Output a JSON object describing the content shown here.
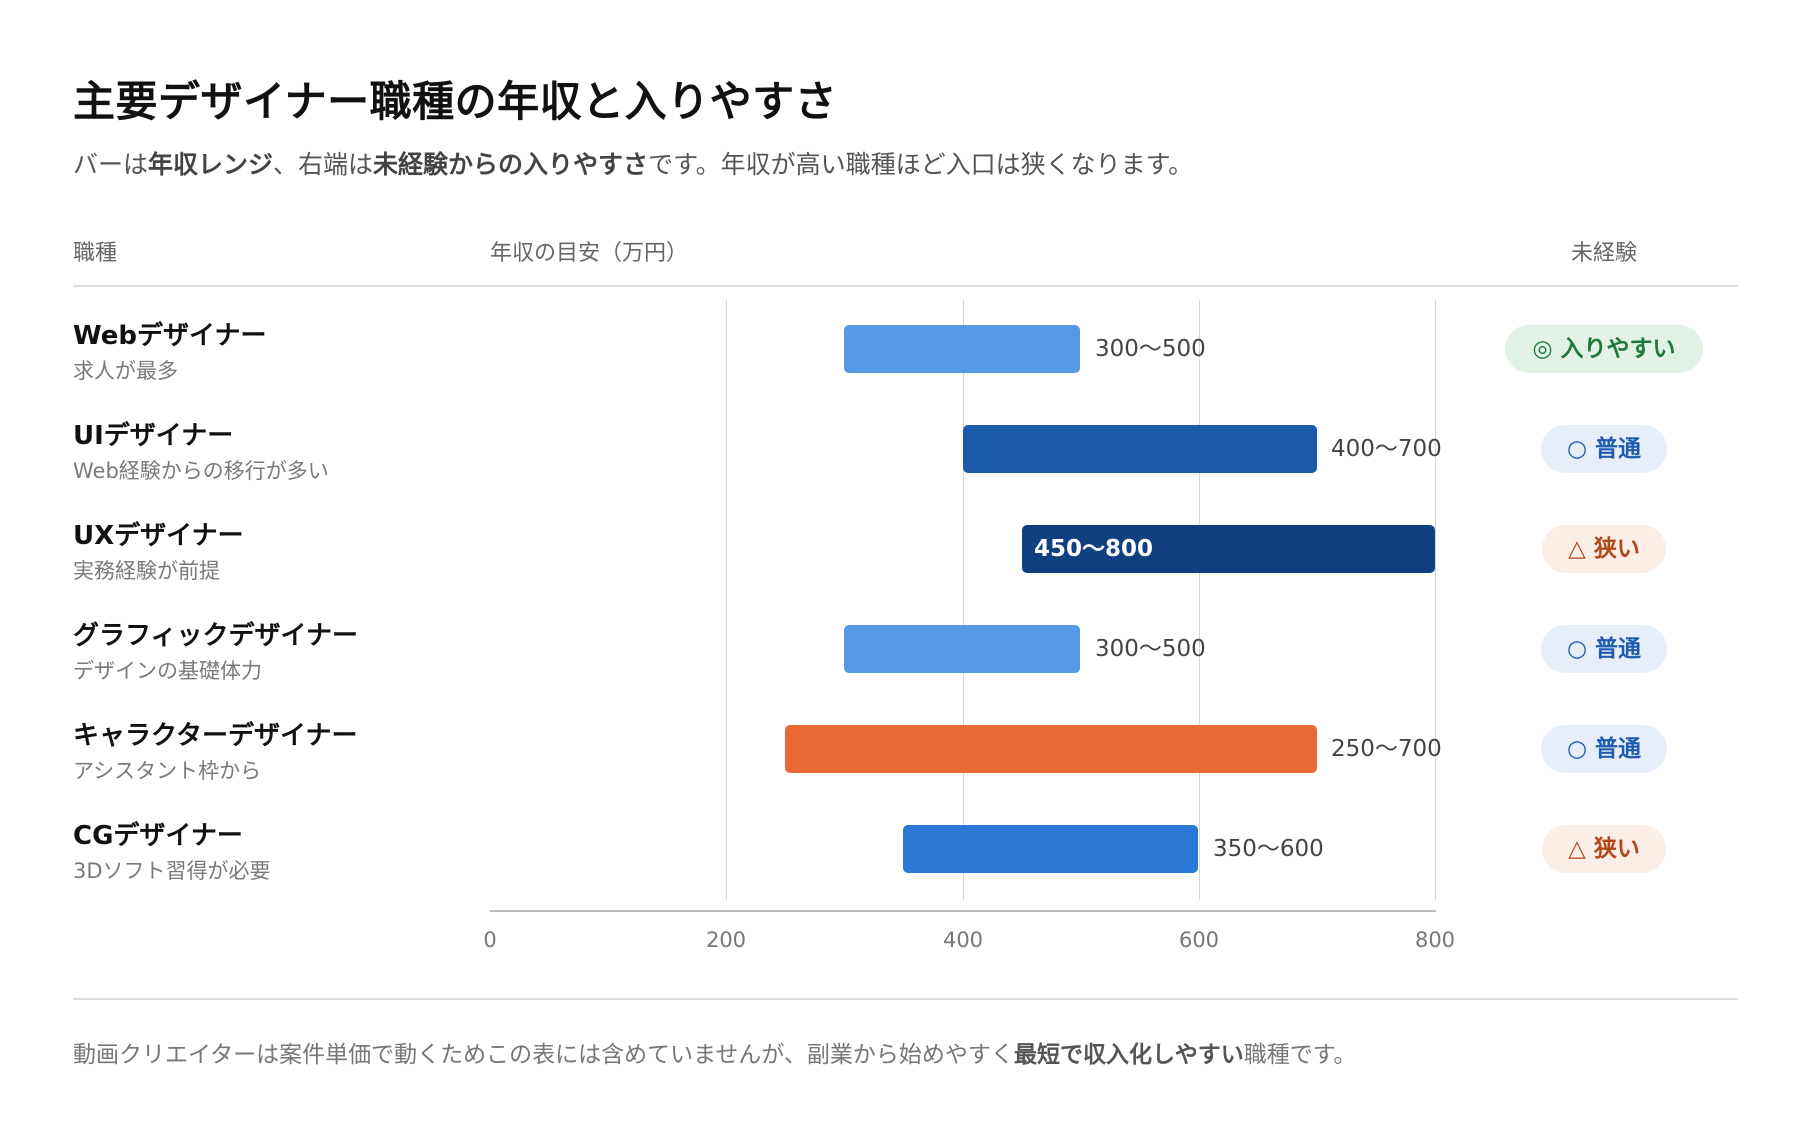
{
  "title": "主要デザイナー職種の年収と入りやすさ",
  "subtitle": {
    "p1": "バーは",
    "b1": "年収レンジ",
    "p2": "、右端は",
    "b2": "未経験からの入りやすさ",
    "p3": "です。年収が高い職種ほど入口は狭くなります。"
  },
  "headers": {
    "job": "職種",
    "salary": "年収の目安（万円）",
    "inexperienced": "未経験"
  },
  "footer": {
    "p1": "動画クリエイターは案件単価で動くためこの表には含めていませんが、副業から始めやすく",
    "b1": "最短で収入化しやすい",
    "p2": "職種です。"
  },
  "colors": {
    "bar_light": "#5598e6",
    "bar_mid": "#1e5aaa",
    "bar_dark": "#103f82",
    "bar_orange": "#ea6a36",
    "bar_medium": "#2b78d6",
    "badge_green_bg": "#e2f2e6",
    "badge_green_fg": "#1e7a3a",
    "badge_blue_bg": "#e6eef9",
    "badge_blue_fg": "#1f5db0",
    "badge_orange_bg": "#fbeee6",
    "badge_orange_fg": "#b0481b"
  },
  "chart_data": {
    "type": "bar",
    "orientation": "horizontal-range",
    "xlabel": "年収の目安（万円）",
    "xlim": [
      0,
      800
    ],
    "ticks": [
      "0",
      "200",
      "400",
      "600",
      "800"
    ],
    "grid": true,
    "rows": [
      {
        "name": "Webデザイナー",
        "sub": "求人が最多",
        "min": 300,
        "max": 500,
        "label": "300〜500",
        "color": "#5598e6",
        "label_inside": false,
        "badge": "◎ 入りやすい",
        "badge_style": "green"
      },
      {
        "name": "UIデザイナー",
        "sub": "Web経験からの移行が多い",
        "min": 400,
        "max": 700,
        "label": "400〜700",
        "color": "#1e5aaa",
        "label_inside": false,
        "badge": "○ 普通",
        "badge_style": "blue"
      },
      {
        "name": "UXデザイナー",
        "sub": "実務経験が前提",
        "min": 450,
        "max": 800,
        "label": "450〜800",
        "color": "#103f82",
        "label_inside": true,
        "badge": "△ 狭い",
        "badge_style": "orange"
      },
      {
        "name": "グラフィックデザイナー",
        "sub": "デザインの基礎体力",
        "min": 300,
        "max": 500,
        "label": "300〜500",
        "color": "#5598e6",
        "label_inside": false,
        "badge": "○ 普通",
        "badge_style": "blue"
      },
      {
        "name": "キャラクターデザイナー",
        "sub": "アシスタント枠から",
        "min": 250,
        "max": 700,
        "label": "250〜700",
        "color": "#ea6a36",
        "label_inside": false,
        "badge": "○ 普通",
        "badge_style": "blue"
      },
      {
        "name": "CGデザイナー",
        "sub": "3Dソフト習得が必要",
        "min": 350,
        "max": 600,
        "label": "350〜600",
        "color": "#2b78d6",
        "label_inside": false,
        "badge": "△ 狭い",
        "badge_style": "orange"
      }
    ]
  }
}
